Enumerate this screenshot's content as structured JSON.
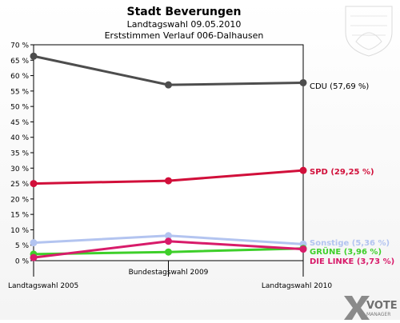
{
  "header": {
    "title": "Stadt Beverungen",
    "subtitle": "Landtagswahl 09.05.2010",
    "subtitle2": "Erststimmen Verlauf 006-Dalhausen"
  },
  "branding": {
    "logo_text_1": "VOTE",
    "logo_text_2": "MANAGER"
  },
  "colors": {
    "cdu": "#4d4d4d",
    "spd": "#d10f3a",
    "sonstige": "#b3c4f0",
    "gruene": "#3ecf2a",
    "linke": "#d81b6a"
  },
  "chart_data": {
    "type": "line",
    "title": "Stadt Beverungen",
    "subtitle": "Landtagswahl 09.05.2010 / Erststimmen Verlauf 006-Dalhausen",
    "x": [
      "Landtagswahl 2005",
      "Bundestagswahl 2009",
      "Landtagswahl 2010"
    ],
    "ylim": [
      0,
      70
    ],
    "yticks": [
      0,
      5,
      10,
      15,
      20,
      25,
      30,
      35,
      40,
      45,
      50,
      55,
      60,
      65,
      70
    ],
    "ytick_labels": [
      "0 %",
      "5 %",
      "10 %",
      "15 %",
      "20 %",
      "25 %",
      "30 %",
      "35 %",
      "40 %",
      "45 %",
      "50 %",
      "55 %",
      "60 %",
      "65 %",
      "70 %"
    ],
    "grid": false,
    "legend": "end-labels",
    "series": [
      {
        "key": "sonstige",
        "name": "Sonstige",
        "end_label": "Sonstige (5,36 %)",
        "values": [
          5.8,
          8.1,
          5.36
        ]
      },
      {
        "key": "gruene",
        "name": "GRÜNE",
        "end_label": "GRÜNE (3,96 %)",
        "values": [
          2.1,
          2.8,
          3.96
        ]
      },
      {
        "key": "linke",
        "name": "DIE LINKE",
        "end_label": "DIE LINKE (3,73 %)",
        "values": [
          1.0,
          6.3,
          3.73
        ]
      },
      {
        "key": "spd",
        "name": "SPD",
        "end_label": "SPD (29,25 %)",
        "values": [
          25.0,
          25.9,
          29.25
        ]
      },
      {
        "key": "cdu",
        "name": "CDU",
        "end_label": "CDU (57,69 %)",
        "values": [
          66.3,
          57.0,
          57.69
        ]
      }
    ]
  }
}
